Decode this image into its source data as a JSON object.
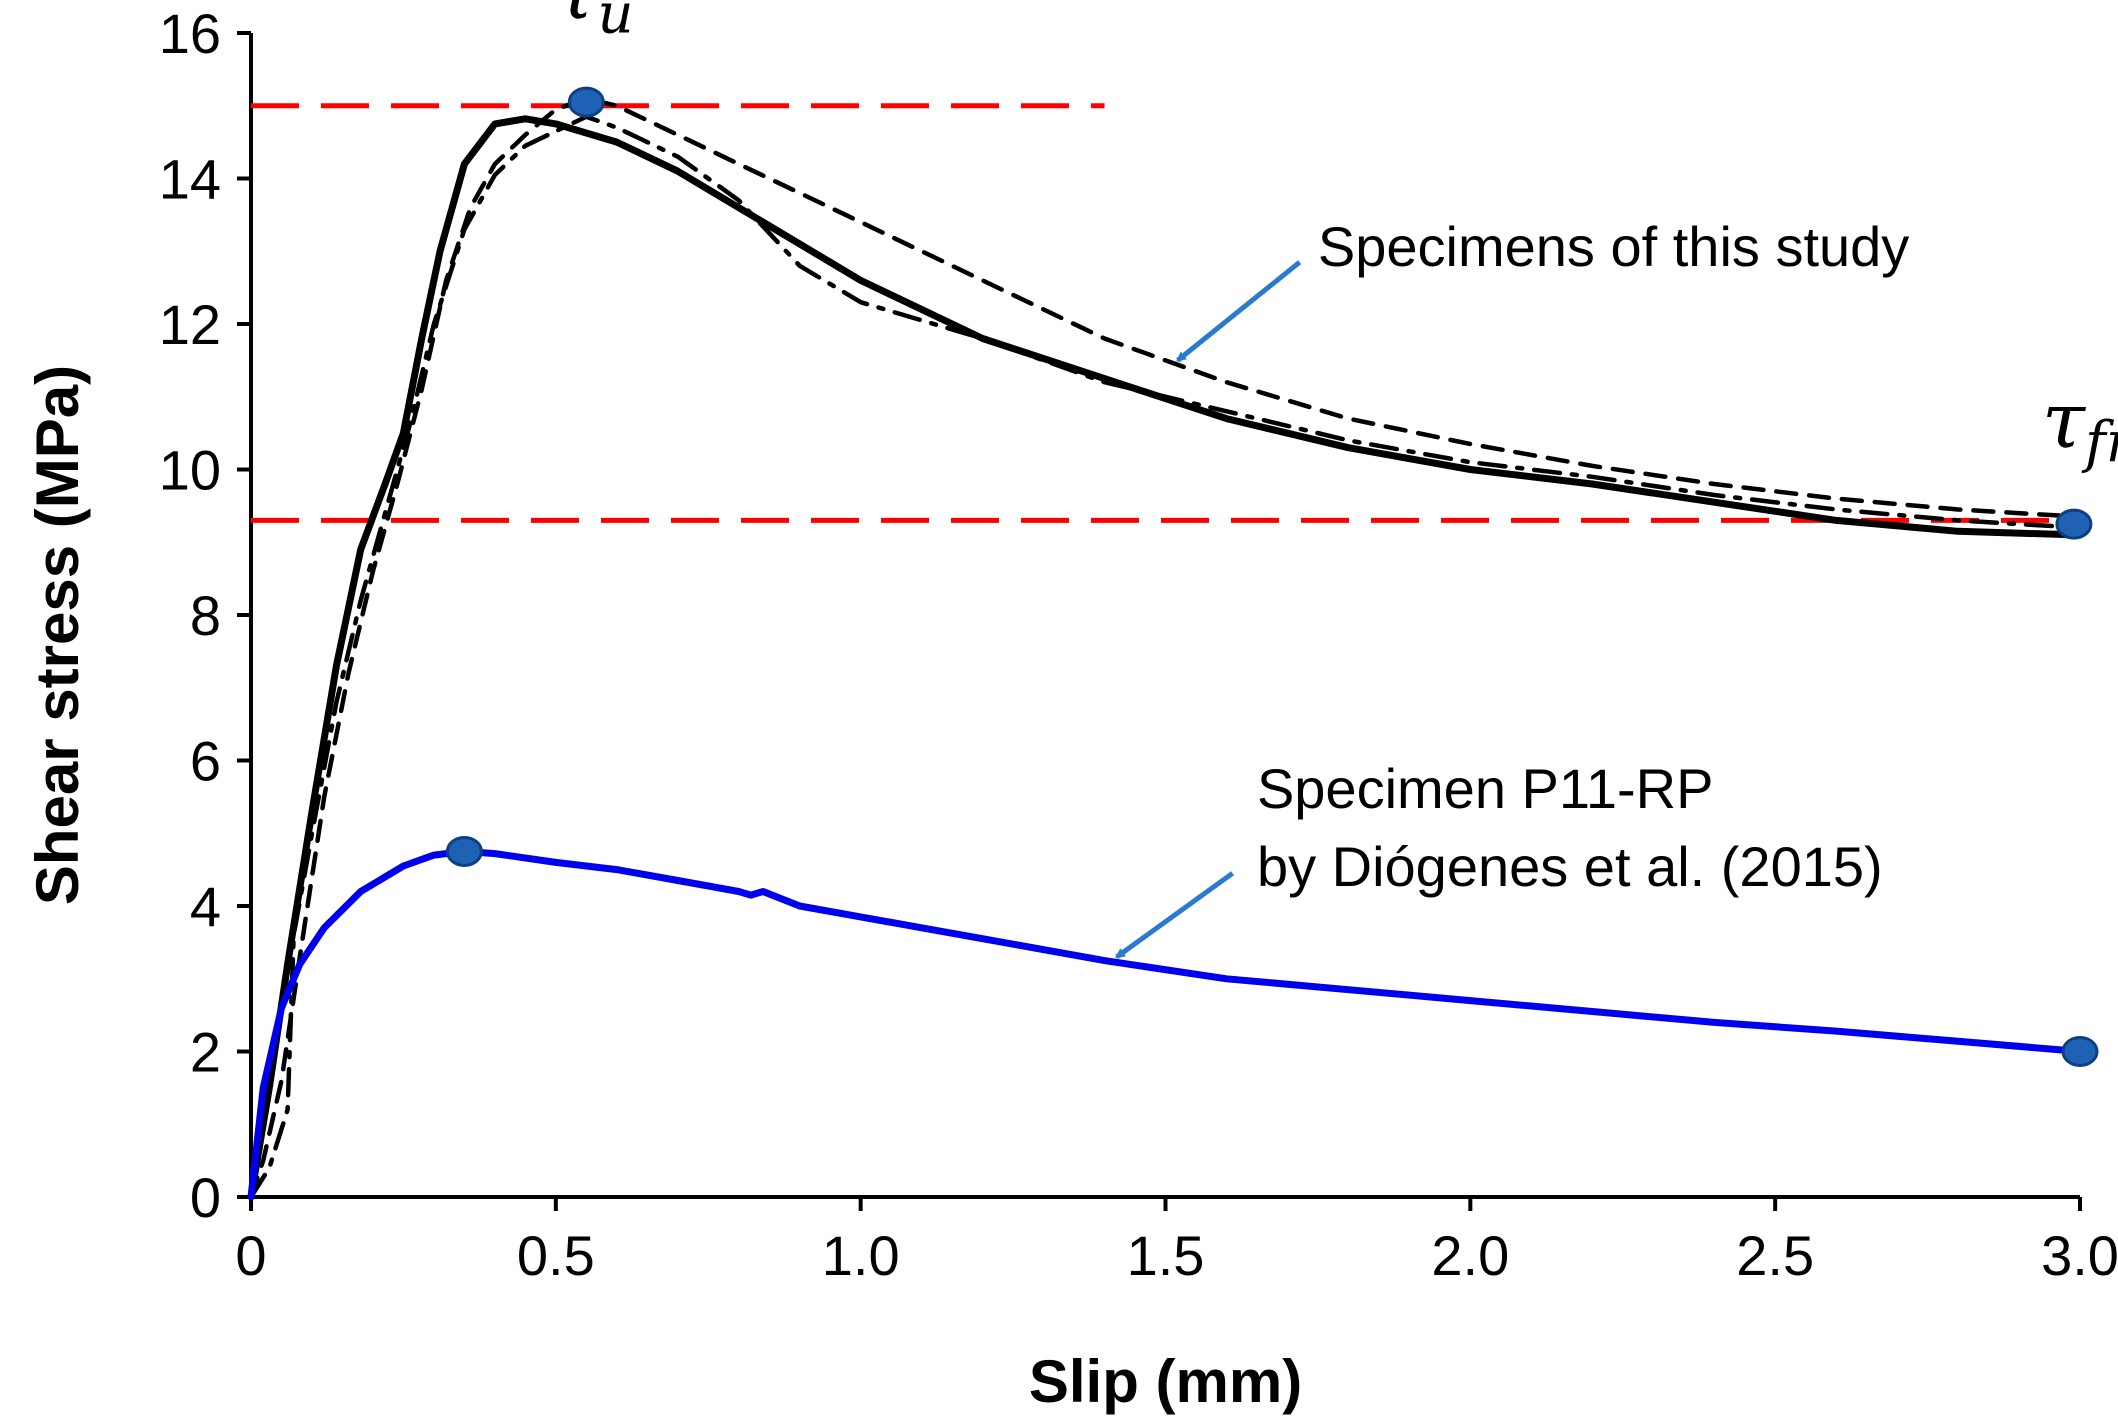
{
  "chart_data": {
    "type": "line",
    "title": "",
    "xlabel": "Slip (mm)",
    "ylabel": "Shear stress (MPa)",
    "xlim": [
      0,
      3.0
    ],
    "ylim": [
      0,
      16
    ],
    "x_ticks": [
      0,
      0.5,
      1.0,
      1.5,
      2.0,
      2.5,
      3.0
    ],
    "x_tick_labels": [
      "0",
      "0.5",
      "1.0",
      "1.5",
      "2.0",
      "2.5",
      "3.0"
    ],
    "y_ticks": [
      0,
      2,
      4,
      6,
      8,
      10,
      12,
      14,
      16
    ],
    "y_tick_labels": [
      "0",
      "2",
      "4",
      "6",
      "8",
      "10",
      "12",
      "14",
      "16"
    ],
    "grid": false,
    "series": [
      {
        "name": "Specimens of this study (solid)",
        "style": "solid",
        "color": "#000000",
        "points": [
          [
            0,
            0
          ],
          [
            0.03,
            1.5
          ],
          [
            0.06,
            3.2
          ],
          [
            0.1,
            5.3
          ],
          [
            0.14,
            7.3
          ],
          [
            0.18,
            8.9
          ],
          [
            0.22,
            9.8
          ],
          [
            0.25,
            10.5
          ],
          [
            0.28,
            11.8
          ],
          [
            0.31,
            13.0
          ],
          [
            0.35,
            14.2
          ],
          [
            0.4,
            14.75
          ],
          [
            0.45,
            14.82
          ],
          [
            0.5,
            14.75
          ],
          [
            0.6,
            14.5
          ],
          [
            0.7,
            14.1
          ],
          [
            0.8,
            13.6
          ],
          [
            0.9,
            13.1
          ],
          [
            1.0,
            12.6
          ],
          [
            1.2,
            11.8
          ],
          [
            1.4,
            11.25
          ],
          [
            1.6,
            10.7
          ],
          [
            1.8,
            10.3
          ],
          [
            2.0,
            10.0
          ],
          [
            2.2,
            9.8
          ],
          [
            2.4,
            9.55
          ],
          [
            2.6,
            9.3
          ],
          [
            2.8,
            9.15
          ],
          [
            3.0,
            9.1
          ]
        ]
      },
      {
        "name": "Specimens of this study (dashed)",
        "style": "dashed",
        "color": "#000000",
        "points": [
          [
            0,
            0
          ],
          [
            0.02,
            0.5
          ],
          [
            0.05,
            1.6
          ],
          [
            0.08,
            3.3
          ],
          [
            0.12,
            5.5
          ],
          [
            0.16,
            7.2
          ],
          [
            0.2,
            8.6
          ],
          [
            0.24,
            9.8
          ],
          [
            0.28,
            11.1
          ],
          [
            0.32,
            12.6
          ],
          [
            0.36,
            13.6
          ],
          [
            0.4,
            14.2
          ],
          [
            0.45,
            14.6
          ],
          [
            0.5,
            14.95
          ],
          [
            0.55,
            15.1
          ],
          [
            0.6,
            15.0
          ],
          [
            0.7,
            14.6
          ],
          [
            0.8,
            14.2
          ],
          [
            0.9,
            13.8
          ],
          [
            1.0,
            13.4
          ],
          [
            1.2,
            12.6
          ],
          [
            1.4,
            11.8
          ],
          [
            1.6,
            11.2
          ],
          [
            1.8,
            10.7
          ],
          [
            2.0,
            10.35
          ],
          [
            2.2,
            10.05
          ],
          [
            2.4,
            9.8
          ],
          [
            2.6,
            9.6
          ],
          [
            2.8,
            9.45
          ],
          [
            3.0,
            9.35
          ]
        ]
      },
      {
        "name": "Specimens of this study (dash-dot)",
        "style": "dashdot",
        "color": "#000000",
        "points": [
          [
            0,
            0
          ],
          [
            0.03,
            0.4
          ],
          [
            0.06,
            1.2
          ],
          [
            0.07,
            3.6
          ],
          [
            0.1,
            5.0
          ],
          [
            0.14,
            6.8
          ],
          [
            0.18,
            8.2
          ],
          [
            0.22,
            9.4
          ],
          [
            0.26,
            10.6
          ],
          [
            0.3,
            12.0
          ],
          [
            0.35,
            13.3
          ],
          [
            0.4,
            14.05
          ],
          [
            0.45,
            14.45
          ],
          [
            0.5,
            14.65
          ],
          [
            0.55,
            14.85
          ],
          [
            0.6,
            14.7
          ],
          [
            0.7,
            14.3
          ],
          [
            0.8,
            13.7
          ],
          [
            0.9,
            12.8
          ],
          [
            1.0,
            12.3
          ],
          [
            1.2,
            11.8
          ],
          [
            1.4,
            11.2
          ],
          [
            1.6,
            10.8
          ],
          [
            1.8,
            10.4
          ],
          [
            2.0,
            10.1
          ],
          [
            2.2,
            9.9
          ],
          [
            2.4,
            9.65
          ],
          [
            2.6,
            9.45
          ],
          [
            2.8,
            9.3
          ],
          [
            3.0,
            9.2
          ]
        ]
      },
      {
        "name": "Specimen P11-RP by Diógenes et al. (2015)",
        "style": "solid",
        "color": "#0000ee",
        "points": [
          [
            0,
            0
          ],
          [
            0.02,
            1.5
          ],
          [
            0.05,
            2.6
          ],
          [
            0.08,
            3.2
          ],
          [
            0.12,
            3.7
          ],
          [
            0.18,
            4.2
          ],
          [
            0.25,
            4.55
          ],
          [
            0.3,
            4.7
          ],
          [
            0.35,
            4.75
          ],
          [
            0.4,
            4.72
          ],
          [
            0.5,
            4.6
          ],
          [
            0.6,
            4.5
          ],
          [
            0.7,
            4.35
          ],
          [
            0.8,
            4.2
          ],
          [
            0.82,
            4.15
          ],
          [
            0.84,
            4.2
          ],
          [
            0.9,
            4.0
          ],
          [
            1.0,
            3.85
          ],
          [
            1.1,
            3.7
          ],
          [
            1.2,
            3.55
          ],
          [
            1.4,
            3.25
          ],
          [
            1.6,
            3.0
          ],
          [
            1.8,
            2.85
          ],
          [
            2.0,
            2.7
          ],
          [
            2.2,
            2.55
          ],
          [
            2.4,
            2.4
          ],
          [
            2.6,
            2.28
          ],
          [
            2.8,
            2.14
          ],
          [
            3.0,
            2.0
          ]
        ]
      }
    ],
    "reference_lines": [
      {
        "name": "tau_u level",
        "y": 15.0,
        "x_range": [
          0,
          1.4
        ],
        "color": "#ff0000",
        "style": "dashed"
      },
      {
        "name": "tau_fr level",
        "y": 9.3,
        "x_range": [
          0,
          3.0
        ],
        "color": "#ff0000",
        "style": "dashed"
      }
    ],
    "markers": [
      {
        "name": "tau-u-point",
        "x": 0.55,
        "y": 15.05,
        "color": "#1f62b5"
      },
      {
        "name": "tau-fr-point",
        "x": 2.99,
        "y": 9.25,
        "color": "#1f62b5"
      },
      {
        "name": "p11-peak-point",
        "x": 0.35,
        "y": 4.75,
        "color": "#1f62b5"
      },
      {
        "name": "p11-end-point",
        "x": 3.0,
        "y": 2.0,
        "color": "#1f62b5"
      }
    ],
    "annotations": [
      {
        "name": "tau-u",
        "symbol": "τ",
        "subscript": "u",
        "at": [
          0.55,
          16.2
        ]
      },
      {
        "name": "tau-fr",
        "symbol": "τ",
        "subscript": "fr",
        "at": [
          2.99,
          10.3
        ]
      },
      {
        "name": "this-study-label",
        "lines": [
          "Specimens of this study"
        ],
        "at": [
          1.75,
          12.8
        ],
        "arrow_from": [
          1.72,
          12.85
        ],
        "arrow_to": [
          1.52,
          11.5
        ],
        "arrow_color": "#2a7ad1"
      },
      {
        "name": "p11-label",
        "lines": [
          "Specimen P11-RP",
          "by Diógenes et al. (2015)"
        ],
        "at": [
          1.65,
          5.35
        ],
        "arrow_from": [
          1.61,
          4.45
        ],
        "arrow_to": [
          1.42,
          3.3
        ],
        "arrow_color": "#2a7ad1"
      }
    ]
  }
}
